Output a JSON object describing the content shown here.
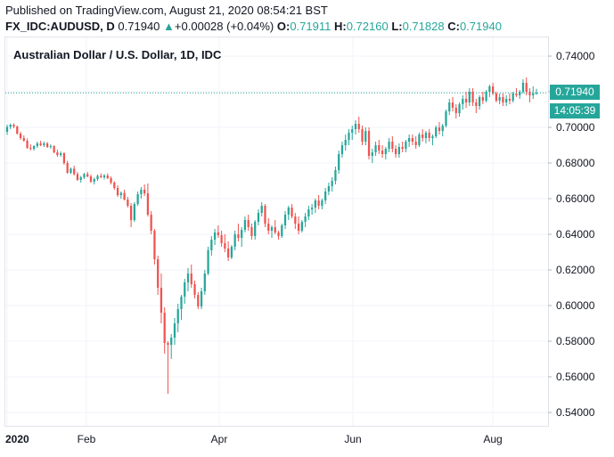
{
  "header": {
    "published": "Published on TradingView.com, August 21, 2020 08:54:21 BST",
    "symbol": "FX_IDC:AUDUSD, D",
    "last": "0.71940",
    "change_arrow": "▲",
    "change": "+0.00028 (+0.04%)",
    "o_label": "O:",
    "o_value": "0.71911",
    "h_label": "H:",
    "h_value": "0.72160",
    "l_label": "L:",
    "l_value": "0.71828",
    "c_label": "C:",
    "c_value": "0.71940"
  },
  "badges": {
    "price": "0.71940",
    "countdown": "14:05:39"
  },
  "colors": {
    "up": "#26a69a",
    "down": "#ef5350",
    "grid": "#f0f3fa",
    "price_line": "#26a69a"
  },
  "chart_data": {
    "type": "candlestick",
    "title": "Australian Dollar / U.S. Dollar, 1D, IDC",
    "ylim": [
      0.53,
      0.75
    ],
    "y_ticks": [
      "0.74000",
      "0.72000",
      "0.70000",
      "0.68000",
      "0.66000",
      "0.64000",
      "0.62000",
      "0.60000",
      "0.58000",
      "0.56000",
      "0.54000"
    ],
    "x_ticks": [
      "2020",
      "Feb",
      "Apr",
      "Jun",
      "Aug"
    ],
    "last_price": 0.7194,
    "grid": true,
    "series": [
      {
        "values": [
          [
            0.6975,
            0.7015,
            0.6958,
            0.7003
          ],
          [
            0.7003,
            0.7022,
            0.699,
            0.7015
          ],
          [
            0.7015,
            0.7022,
            0.6995,
            0.7005
          ],
          [
            0.7005,
            0.701,
            0.696,
            0.6965
          ],
          [
            0.6965,
            0.6975,
            0.693,
            0.694
          ],
          [
            0.694,
            0.6955,
            0.692,
            0.6925
          ],
          [
            0.6925,
            0.6938,
            0.688,
            0.6885
          ],
          [
            0.6885,
            0.6905,
            0.687,
            0.688
          ],
          [
            0.688,
            0.69,
            0.687,
            0.6895
          ],
          [
            0.6895,
            0.692,
            0.6885,
            0.691
          ],
          [
            0.691,
            0.6925,
            0.6895,
            0.69
          ],
          [
            0.69,
            0.692,
            0.689,
            0.691
          ],
          [
            0.691,
            0.6918,
            0.6885,
            0.689
          ],
          [
            0.689,
            0.6905,
            0.688,
            0.6895
          ],
          [
            0.6895,
            0.69,
            0.6855,
            0.686
          ],
          [
            0.686,
            0.6875,
            0.6835,
            0.6845
          ],
          [
            0.6845,
            0.6865,
            0.6835,
            0.6855
          ],
          [
            0.6855,
            0.686,
            0.679,
            0.68
          ],
          [
            0.68,
            0.6812,
            0.674,
            0.6745
          ],
          [
            0.6745,
            0.6775,
            0.6738,
            0.6768
          ],
          [
            0.6768,
            0.6785,
            0.673,
            0.6738
          ],
          [
            0.6738,
            0.675,
            0.67,
            0.6705
          ],
          [
            0.6705,
            0.6728,
            0.669,
            0.672
          ],
          [
            0.672,
            0.6745,
            0.671,
            0.6738
          ],
          [
            0.6738,
            0.675,
            0.672,
            0.6725
          ],
          [
            0.6725,
            0.6735,
            0.6688,
            0.6695
          ],
          [
            0.6695,
            0.6718,
            0.668,
            0.671
          ],
          [
            0.671,
            0.6735,
            0.67,
            0.6728
          ],
          [
            0.6728,
            0.6742,
            0.6715,
            0.672
          ],
          [
            0.672,
            0.6738,
            0.6708,
            0.673
          ],
          [
            0.673,
            0.6742,
            0.671,
            0.6715
          ],
          [
            0.6715,
            0.6725,
            0.668,
            0.669
          ],
          [
            0.669,
            0.6698,
            0.665,
            0.666
          ],
          [
            0.666,
            0.6675,
            0.661,
            0.662
          ],
          [
            0.662,
            0.664,
            0.66,
            0.6632
          ],
          [
            0.6632,
            0.665,
            0.659,
            0.6595
          ],
          [
            0.6595,
            0.661,
            0.655,
            0.656
          ],
          [
            0.656,
            0.6575,
            0.644,
            0.648
          ],
          [
            0.648,
            0.658,
            0.647,
            0.657
          ],
          [
            0.657,
            0.664,
            0.656,
            0.6625
          ],
          [
            0.6625,
            0.6665,
            0.66,
            0.665
          ],
          [
            0.665,
            0.668,
            0.6615,
            0.663
          ],
          [
            0.663,
            0.6685,
            0.65,
            0.651
          ],
          [
            0.651,
            0.653,
            0.64,
            0.642
          ],
          [
            0.642,
            0.643,
            0.623,
            0.626
          ],
          [
            0.626,
            0.628,
            0.606,
            0.61
          ],
          [
            0.61,
            0.618,
            0.59,
            0.596
          ],
          [
            0.596,
            0.599,
            0.573,
            0.579
          ],
          [
            0.579,
            0.58,
            0.5505,
            0.578
          ],
          [
            0.578,
            0.584,
            0.57,
            0.582
          ],
          [
            0.582,
            0.593,
            0.578,
            0.59
          ],
          [
            0.59,
            0.601,
            0.585,
            0.598
          ],
          [
            0.598,
            0.606,
            0.592,
            0.605
          ],
          [
            0.605,
            0.615,
            0.601,
            0.613
          ],
          [
            0.613,
            0.621,
            0.608,
            0.618
          ],
          [
            0.618,
            0.623,
            0.61,
            0.612
          ],
          [
            0.612,
            0.614,
            0.604,
            0.606
          ],
          [
            0.606,
            0.6075,
            0.598,
            0.5995
          ],
          [
            0.5995,
            0.61,
            0.598,
            0.608
          ],
          [
            0.608,
            0.62,
            0.606,
            0.618
          ],
          [
            0.618,
            0.633,
            0.617,
            0.631
          ],
          [
            0.631,
            0.639,
            0.628,
            0.637
          ],
          [
            0.637,
            0.643,
            0.634,
            0.641
          ],
          [
            0.641,
            0.645,
            0.638,
            0.6395
          ],
          [
            0.6395,
            0.642,
            0.633,
            0.635
          ],
          [
            0.635,
            0.64,
            0.63,
            0.632
          ],
          [
            0.632,
            0.636,
            0.625,
            0.627
          ],
          [
            0.627,
            0.634,
            0.626,
            0.633
          ],
          [
            0.633,
            0.642,
            0.631,
            0.64
          ],
          [
            0.64,
            0.646,
            0.636,
            0.638
          ],
          [
            0.638,
            0.644,
            0.633,
            0.6425
          ],
          [
            0.6425,
            0.65,
            0.641,
            0.648
          ],
          [
            0.648,
            0.651,
            0.642,
            0.644
          ],
          [
            0.644,
            0.646,
            0.637,
            0.639
          ],
          [
            0.639,
            0.648,
            0.637,
            0.647
          ],
          [
            0.647,
            0.654,
            0.645,
            0.652
          ],
          [
            0.652,
            0.658,
            0.65,
            0.656
          ],
          [
            0.656,
            0.657,
            0.644,
            0.646
          ],
          [
            0.646,
            0.649,
            0.64,
            0.642
          ],
          [
            0.642,
            0.645,
            0.638,
            0.644
          ],
          [
            0.644,
            0.648,
            0.64,
            0.641
          ],
          [
            0.641,
            0.642,
            0.637,
            0.639
          ],
          [
            0.639,
            0.646,
            0.638,
            0.645
          ],
          [
            0.645,
            0.653,
            0.643,
            0.651
          ],
          [
            0.651,
            0.656,
            0.648,
            0.655
          ],
          [
            0.655,
            0.657,
            0.649,
            0.65
          ],
          [
            0.65,
            0.652,
            0.643,
            0.646
          ],
          [
            0.646,
            0.65,
            0.64,
            0.642
          ],
          [
            0.642,
            0.648,
            0.641,
            0.647
          ],
          [
            0.647,
            0.652,
            0.644,
            0.65
          ],
          [
            0.65,
            0.656,
            0.648,
            0.654
          ],
          [
            0.654,
            0.657,
            0.651,
            0.655
          ],
          [
            0.655,
            0.66,
            0.652,
            0.659
          ],
          [
            0.659,
            0.662,
            0.654,
            0.656
          ],
          [
            0.656,
            0.66,
            0.654,
            0.659
          ],
          [
            0.659,
            0.666,
            0.657,
            0.664
          ],
          [
            0.664,
            0.669,
            0.662,
            0.667
          ],
          [
            0.667,
            0.672,
            0.664,
            0.67
          ],
          [
            0.67,
            0.678,
            0.668,
            0.676
          ],
          [
            0.676,
            0.687,
            0.674,
            0.685
          ],
          [
            0.685,
            0.692,
            0.683,
            0.69
          ],
          [
            0.69,
            0.696,
            0.687,
            0.693
          ],
          [
            0.693,
            0.699,
            0.69,
            0.697
          ],
          [
            0.697,
            0.701,
            0.693,
            0.699
          ],
          [
            0.699,
            0.704,
            0.696,
            0.702
          ],
          [
            0.702,
            0.706,
            0.697,
            0.699
          ],
          [
            0.699,
            0.701,
            0.69,
            0.692
          ],
          [
            0.692,
            0.7,
            0.69,
            0.698
          ],
          [
            0.698,
            0.7,
            0.682,
            0.684
          ],
          [
            0.684,
            0.688,
            0.68,
            0.686
          ],
          [
            0.686,
            0.692,
            0.684,
            0.69
          ],
          [
            0.69,
            0.693,
            0.685,
            0.687
          ],
          [
            0.687,
            0.69,
            0.683,
            0.685
          ],
          [
            0.685,
            0.689,
            0.682,
            0.688
          ],
          [
            0.688,
            0.694,
            0.686,
            0.692
          ],
          [
            0.692,
            0.695,
            0.686,
            0.688
          ],
          [
            0.688,
            0.69,
            0.683,
            0.685
          ],
          [
            0.685,
            0.691,
            0.683,
            0.689
          ],
          [
            0.689,
            0.692,
            0.686,
            0.688
          ],
          [
            0.688,
            0.693,
            0.686,
            0.692
          ],
          [
            0.692,
            0.696,
            0.689,
            0.694
          ],
          [
            0.694,
            0.696,
            0.69,
            0.692
          ],
          [
            0.692,
            0.695,
            0.688,
            0.69
          ],
          [
            0.69,
            0.697,
            0.689,
            0.696
          ],
          [
            0.696,
            0.699,
            0.692,
            0.694
          ],
          [
            0.694,
            0.698,
            0.691,
            0.697
          ],
          [
            0.697,
            0.699,
            0.692,
            0.694
          ],
          [
            0.694,
            0.696,
            0.69,
            0.695
          ],
          [
            0.695,
            0.701,
            0.694,
            0.7
          ],
          [
            0.7,
            0.703,
            0.696,
            0.698
          ],
          [
            0.698,
            0.702,
            0.695,
            0.701
          ],
          [
            0.701,
            0.71,
            0.7,
            0.709
          ],
          [
            0.709,
            0.716,
            0.707,
            0.714
          ],
          [
            0.714,
            0.717,
            0.709,
            0.711
          ],
          [
            0.711,
            0.713,
            0.705,
            0.708
          ],
          [
            0.708,
            0.714,
            0.706,
            0.713
          ],
          [
            0.713,
            0.718,
            0.71,
            0.716
          ],
          [
            0.716,
            0.72,
            0.711,
            0.714
          ],
          [
            0.714,
            0.722,
            0.712,
            0.72
          ],
          [
            0.72,
            0.722,
            0.712,
            0.714
          ],
          [
            0.714,
            0.716,
            0.708,
            0.712
          ],
          [
            0.712,
            0.718,
            0.71,
            0.717
          ],
          [
            0.717,
            0.72,
            0.713,
            0.715
          ],
          [
            0.715,
            0.721,
            0.714,
            0.72
          ],
          [
            0.72,
            0.724,
            0.717,
            0.723
          ],
          [
            0.723,
            0.725,
            0.718,
            0.719
          ],
          [
            0.719,
            0.72,
            0.714,
            0.715
          ],
          [
            0.715,
            0.719,
            0.713,
            0.717
          ],
          [
            0.717,
            0.719,
            0.712,
            0.714
          ],
          [
            0.714,
            0.718,
            0.712,
            0.716
          ],
          [
            0.716,
            0.719,
            0.713,
            0.715
          ],
          [
            0.715,
            0.72,
            0.714,
            0.719
          ],
          [
            0.719,
            0.722,
            0.717,
            0.718
          ],
          [
            0.718,
            0.721,
            0.716,
            0.72
          ],
          [
            0.72,
            0.727,
            0.719,
            0.725
          ],
          [
            0.725,
            0.728,
            0.718,
            0.72
          ],
          [
            0.72,
            0.722,
            0.714,
            0.718
          ],
          [
            0.718,
            0.723,
            0.716,
            0.7191
          ],
          [
            0.7191,
            0.7216,
            0.7183,
            0.7194
          ]
        ]
      }
    ]
  }
}
